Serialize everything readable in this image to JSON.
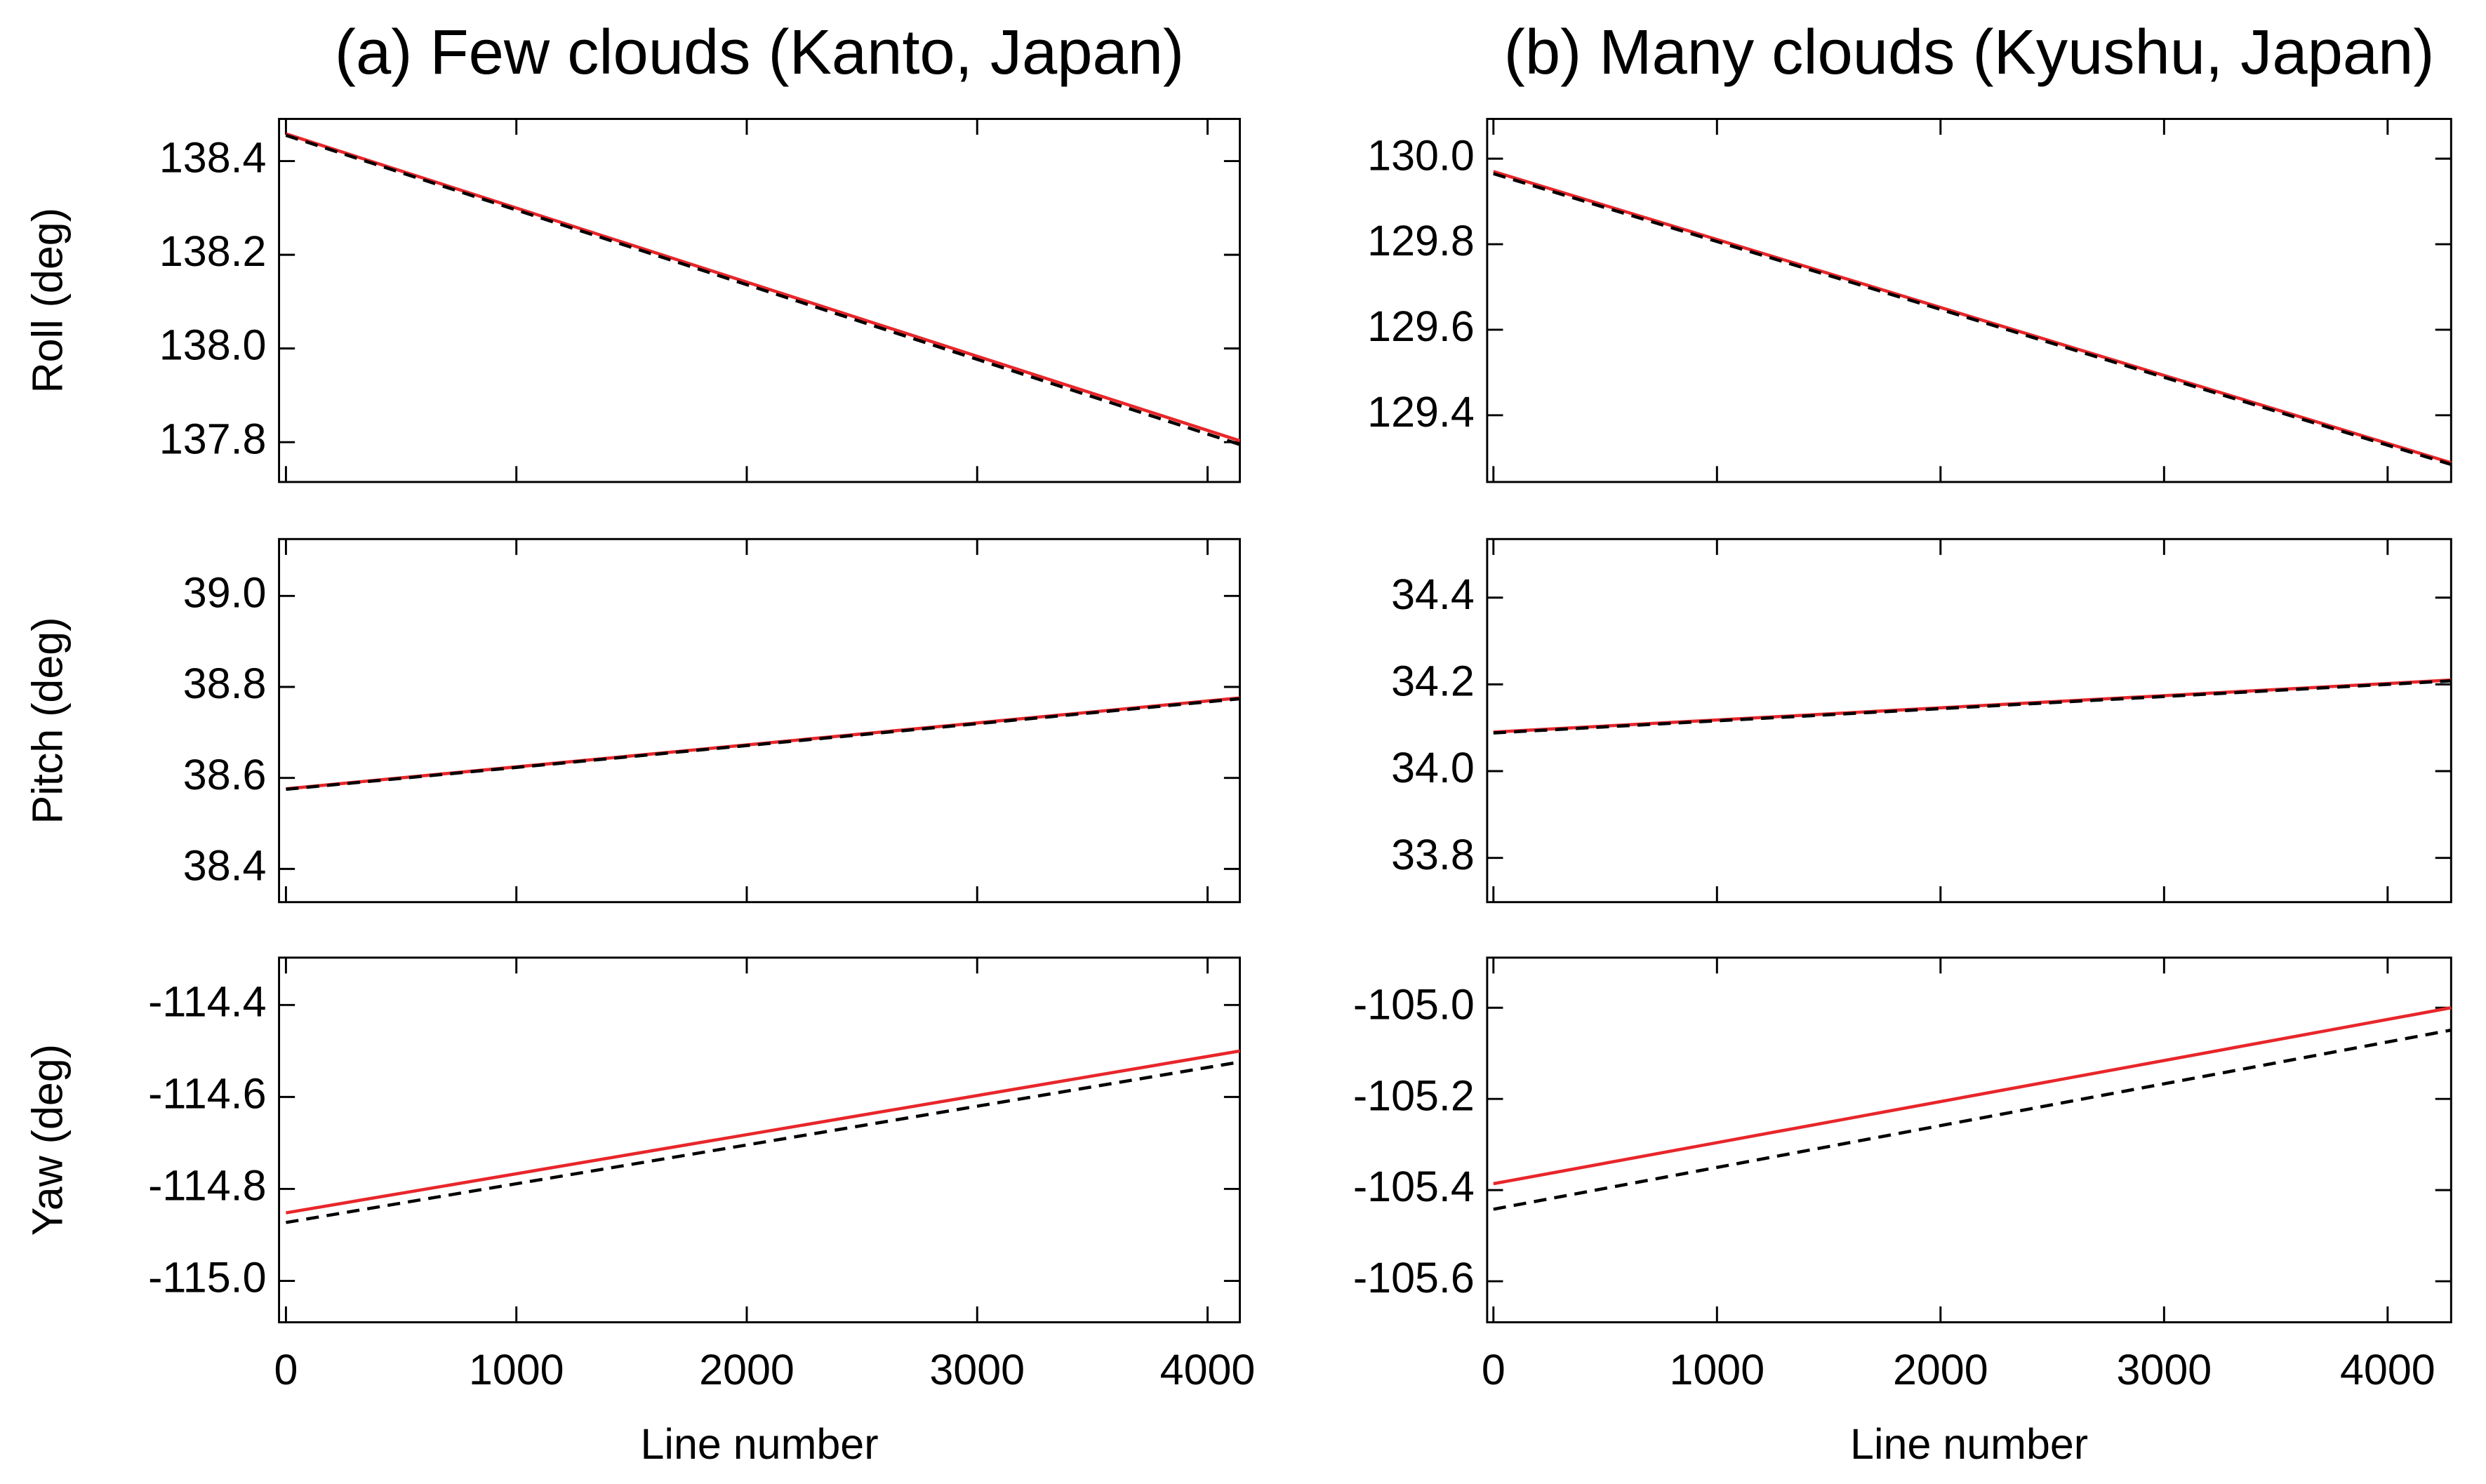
{
  "chart_data": [
    {
      "type": "line",
      "title": "(a) Few clouds (Kanto, Japan)",
      "ylabel": "Roll (deg)",
      "xlim": [
        -30,
        4140
      ],
      "ylim": [
        137.715,
        138.49
      ],
      "xticks": [
        0,
        1000,
        2000,
        3000,
        4000
      ],
      "xticklabels": false,
      "yticks": [
        137.8,
        {
          "value": 138,
          "label": "138.0"
        },
        138.2,
        138.4
      ],
      "x": [
        0,
        4140
      ],
      "series": [
        {
          "color": "#e8262a",
          "linestyle": "solid",
          "values": [
            138.458,
            137.803
          ]
        },
        {
          "color": "#000000",
          "linestyle": "dashed",
          "values": [
            138.455,
            137.795
          ]
        }
      ]
    },
    {
      "type": "line",
      "ylabel": "Pitch (deg)",
      "xlim": [
        -30,
        4140
      ],
      "ylim": [
        38.327,
        39.125
      ],
      "xticks": [
        0,
        1000,
        2000,
        3000,
        4000
      ],
      "xticklabels": false,
      "yticks": [
        38.4,
        38.6,
        38.8,
        {
          "value": 39,
          "label": "39.0"
        }
      ],
      "x": [
        0,
        4140
      ],
      "series": [
        {
          "color": "#e8262a",
          "linestyle": "solid",
          "values": [
            38.576,
            38.776
          ]
        },
        {
          "color": "#000000",
          "linestyle": "dashed",
          "values": [
            38.575,
            38.774
          ]
        }
      ]
    },
    {
      "type": "line",
      "ylabel": "Yaw (deg)",
      "xlabel": "Line number",
      "xlim": [
        -30,
        4140
      ],
      "ylim": [
        -115.09,
        -114.297
      ],
      "xticks": [
        0,
        1000,
        2000,
        3000,
        4000
      ],
      "xticklabels": true,
      "yticks": [
        {
          "value": -115,
          "label": "-115.0"
        },
        -114.8,
        -114.6,
        -114.4
      ],
      "x": [
        0,
        4140
      ],
      "series": [
        {
          "color": "#e8262a",
          "linestyle": "solid",
          "values": [
            -114.852,
            -114.5
          ]
        },
        {
          "color": "#000000",
          "linestyle": "dashed",
          "values": [
            -114.873,
            -114.524
          ]
        }
      ]
    },
    {
      "type": "line",
      "title": "(b) Many clouds (Kyushu, Japan)",
      "xlim": [
        -28,
        4284
      ],
      "ylim": [
        129.244,
        130.093
      ],
      "xticks": [
        0,
        1000,
        2000,
        3000,
        4000
      ],
      "xticklabels": false,
      "yticks": [
        129.4,
        129.6,
        129.8,
        {
          "value": 130,
          "label": "130.0"
        }
      ],
      "x": [
        0,
        4284
      ],
      "series": [
        {
          "color": "#e8262a",
          "linestyle": "solid",
          "values": [
            129.97,
            129.289
          ]
        },
        {
          "color": "#000000",
          "linestyle": "dashed",
          "values": [
            129.965,
            129.285
          ]
        }
      ]
    },
    {
      "type": "line",
      "xlim": [
        -28,
        4284
      ],
      "ylim": [
        33.698,
        34.535
      ],
      "xticks": [
        0,
        1000,
        2000,
        3000,
        4000
      ],
      "xticklabels": false,
      "yticks": [
        33.8,
        {
          "value": 34,
          "label": "34.0"
        },
        34.2,
        34.4
      ],
      "x": [
        0,
        4284
      ],
      "series": [
        {
          "color": "#e8262a",
          "linestyle": "solid",
          "values": [
            34.09,
            34.21
          ]
        },
        {
          "color": "#000000",
          "linestyle": "dashed",
          "values": [
            34.088,
            34.208
          ]
        }
      ]
    },
    {
      "type": "line",
      "xlabel": "Line number",
      "xlim": [
        -28,
        4284
      ],
      "ylim": [
        -105.69,
        -104.89
      ],
      "xticks": [
        0,
        1000,
        2000,
        3000,
        4000
      ],
      "xticklabels": true,
      "yticks": [
        -105.6,
        -105.4,
        -105.2,
        {
          "value": -105,
          "label": "-105.0"
        }
      ],
      "x": [
        0,
        4284
      ],
      "series": [
        {
          "color": "#e8262a",
          "linestyle": "solid",
          "values": [
            -105.386,
            -105.0
          ]
        },
        {
          "color": "#000000",
          "linestyle": "dashed",
          "values": [
            -105.442,
            -105.049
          ]
        }
      ]
    }
  ]
}
